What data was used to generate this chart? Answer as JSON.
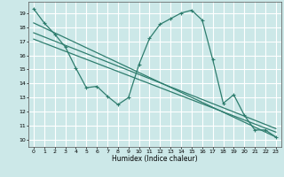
{
  "xlabel": "Humidex (Indice chaleur)",
  "bg_color": "#cce8e8",
  "grid_color": "#ffffff",
  "line_color": "#2e7d6e",
  "xlim": [
    -0.5,
    23.5
  ],
  "ylim": [
    9.5,
    19.8
  ],
  "yticks": [
    10,
    11,
    12,
    13,
    14,
    15,
    16,
    17,
    18,
    19
  ],
  "xticks": [
    0,
    1,
    2,
    3,
    4,
    5,
    6,
    7,
    8,
    9,
    10,
    11,
    12,
    13,
    14,
    15,
    16,
    17,
    18,
    19,
    20,
    21,
    22,
    23
  ],
  "line1_x": [
    0,
    1,
    2,
    3,
    4,
    5,
    6,
    7,
    8,
    9,
    10,
    11,
    12,
    13,
    14,
    15,
    16,
    17,
    18,
    19,
    20,
    21,
    22,
    23
  ],
  "line1_y": [
    19.3,
    18.3,
    17.5,
    16.6,
    15.1,
    13.7,
    13.8,
    13.1,
    12.5,
    13.0,
    15.35,
    17.2,
    18.2,
    18.6,
    19.0,
    19.2,
    18.5,
    15.7,
    12.6,
    13.2,
    11.75,
    10.7,
    10.7,
    10.2
  ],
  "line2_x": [
    0,
    23
  ],
  "line2_y": [
    18.3,
    10.2
  ],
  "line3_x": [
    0,
    23
  ],
  "line3_y": [
    17.6,
    10.8
  ],
  "line4_x": [
    0,
    23
  ],
  "line4_y": [
    17.15,
    10.55
  ]
}
